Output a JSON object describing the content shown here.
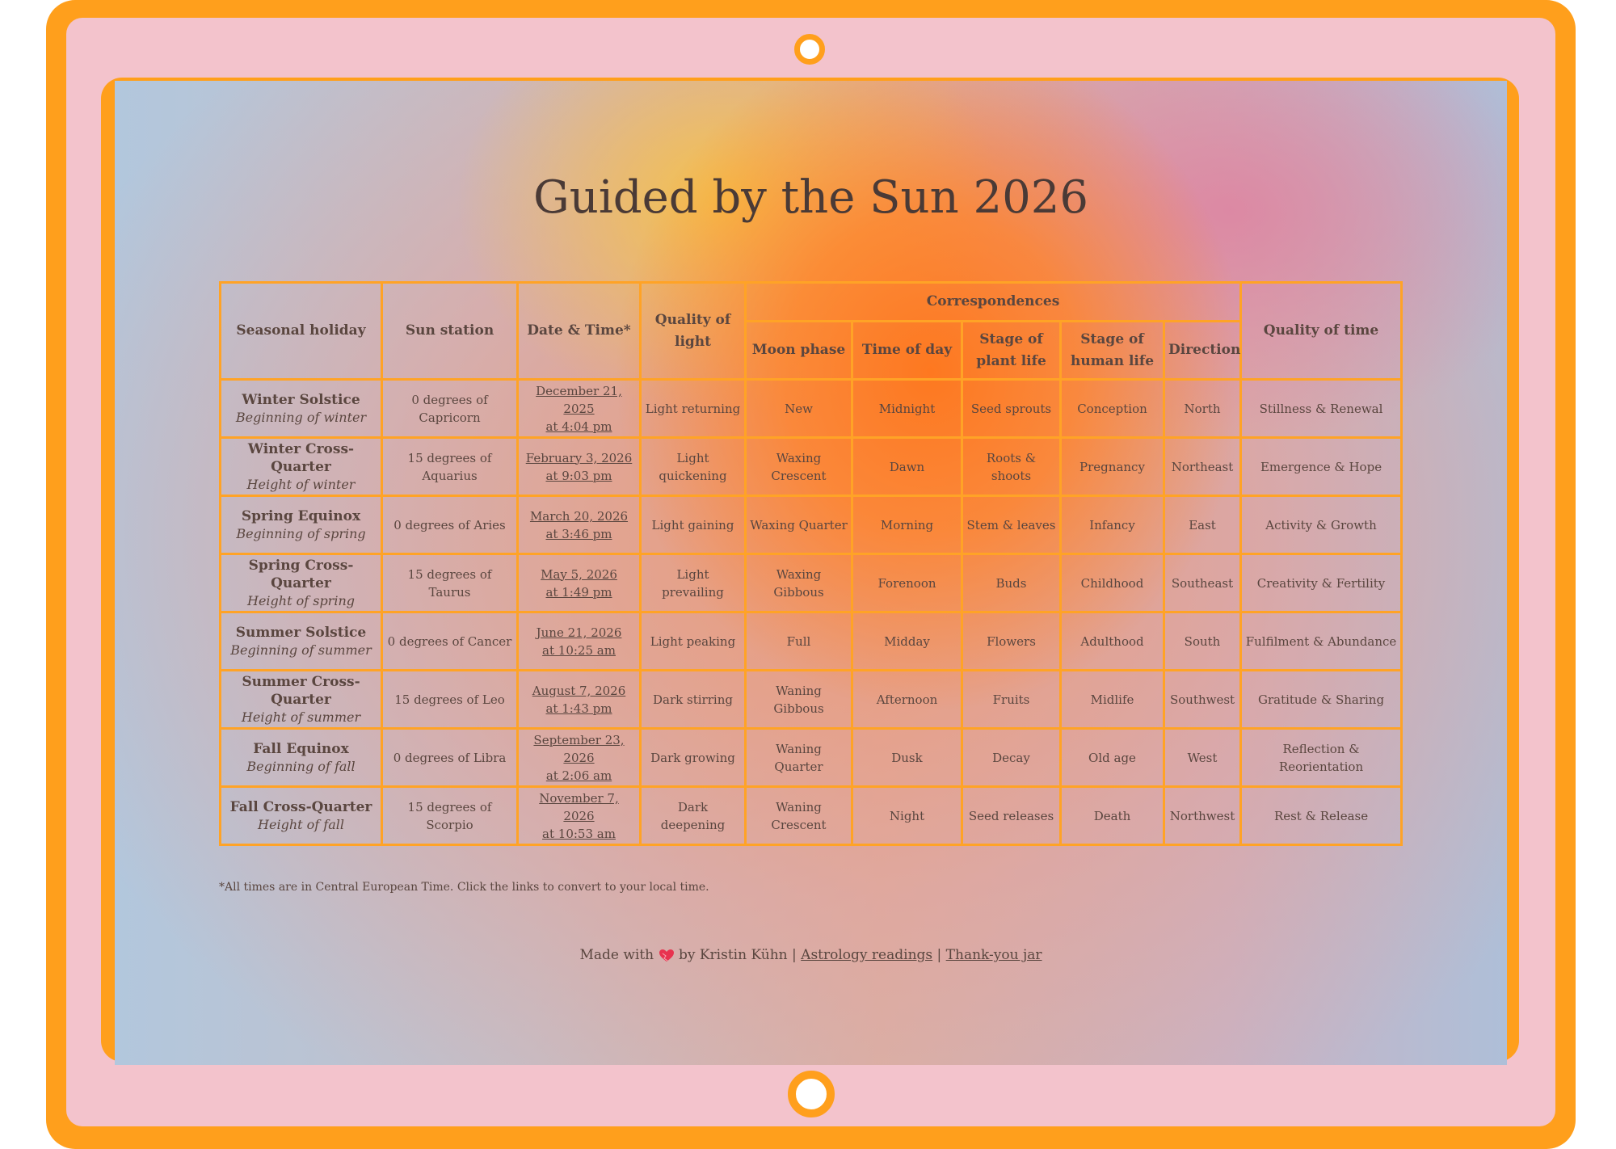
{
  "title": "Guided by the Sun 2026",
  "headers": {
    "seasonal_holiday": "Seasonal holiday",
    "sun_station": "Sun station",
    "date_time": "Date & Time*",
    "quality_of_light": "Quality of light",
    "correspondences": "Correspondences",
    "moon_phase": "Moon phase",
    "time_of_day": "Time of day",
    "stage_plant_1": "Stage of",
    "stage_plant_2": "plant life",
    "stage_human_1": "Stage of",
    "stage_human_2": "human life",
    "direction": "Direction",
    "quality_of_time": "Quality of time"
  },
  "rows": [
    {
      "holiday": "Winter Solstice",
      "subtitle": "Beginning of winter",
      "station": "0 degrees of Capricorn",
      "date": "December 21, 2025",
      "time": "at 4:04 pm",
      "light": "Light returning",
      "moon": "New",
      "tod": "Midnight",
      "plant": "Seed sprouts",
      "human": "Conception",
      "direction": "North",
      "qtime": "Stillness & Renewal"
    },
    {
      "holiday": "Winter Cross-Quarter",
      "subtitle": "Height of winter",
      "station": "15 degrees of Aquarius",
      "date": "February 3, 2026",
      "time": "at 9:03 pm",
      "light": "Light quickening",
      "moon": "Waxing Crescent",
      "tod": "Dawn",
      "plant": "Roots & shoots",
      "human": "Pregnancy",
      "direction": "Northeast",
      "qtime": "Emergence & Hope"
    },
    {
      "holiday": "Spring Equinox",
      "subtitle": "Beginning of spring",
      "station": "0 degrees of Aries",
      "date": "March 20, 2026",
      "time": "at 3:46 pm",
      "light": "Light gaining",
      "moon": "Waxing Quarter",
      "tod": "Morning",
      "plant": "Stem & leaves",
      "human": "Infancy",
      "direction": "East",
      "qtime": "Activity & Growth"
    },
    {
      "holiday": "Spring Cross-Quarter",
      "subtitle": "Height of spring",
      "station": "15 degrees of Taurus",
      "date": "May 5, 2026",
      "time": "at 1:49 pm",
      "light": "Light prevailing",
      "moon": "Waxing Gibbous",
      "tod": "Forenoon",
      "plant": "Buds",
      "human": "Childhood",
      "direction": "Southeast",
      "qtime": "Creativity & Fertility"
    },
    {
      "holiday": "Summer Solstice",
      "subtitle": "Beginning of summer",
      "station": "0 degrees of Cancer",
      "date": "June 21, 2026",
      "time": "at 10:25 am",
      "light": "Light peaking",
      "moon": "Full",
      "tod": "Midday",
      "plant": "Flowers",
      "human": "Adulthood",
      "direction": "South",
      "qtime": "Fulfilment & Abundance"
    },
    {
      "holiday": "Summer Cross-Quarter",
      "subtitle": "Height of summer",
      "station": "15 degrees of Leo",
      "date": "August 7, 2026",
      "time": "at 1:43 pm",
      "light": "Dark stirring",
      "moon": "Waning Gibbous",
      "tod": "Afternoon",
      "plant": "Fruits",
      "human": "Midlife",
      "direction": "Southwest",
      "qtime": "Gratitude & Sharing"
    },
    {
      "holiday": "Fall Equinox",
      "subtitle": "Beginning of fall",
      "station": "0 degrees of Libra",
      "date": "September 23, 2026",
      "time": "at 2:06 am",
      "light": "Dark growing",
      "moon": "Waning Quarter",
      "tod": "Dusk",
      "plant": "Decay",
      "human": "Old age",
      "direction": "West",
      "qtime": "Reflection & Reorientation"
    },
    {
      "holiday": "Fall Cross-Quarter",
      "subtitle": "Height of fall",
      "station": "15 degrees of Scorpio",
      "date": "November 7, 2026",
      "time": "at 10:53 am",
      "light": "Dark deepening",
      "moon": "Waning Crescent",
      "tod": "Night",
      "plant": "Seed releases",
      "human": "Death",
      "direction": "Northwest",
      "qtime": "Rest & Release"
    }
  ],
  "footnote": "*All times are in Central European Time. Click the links to convert to your local time.",
  "footer": {
    "made_with": "Made with",
    "heart_icon": "heart-icon",
    "by": "by Kristin Kühn |",
    "link1": "Astrology readings",
    "sep": "|",
    "link2": "Thank-you jar"
  },
  "colors": {
    "accent": "#ff9f1c",
    "bezel": "#f3c3cc",
    "heart": "#e8334f"
  }
}
